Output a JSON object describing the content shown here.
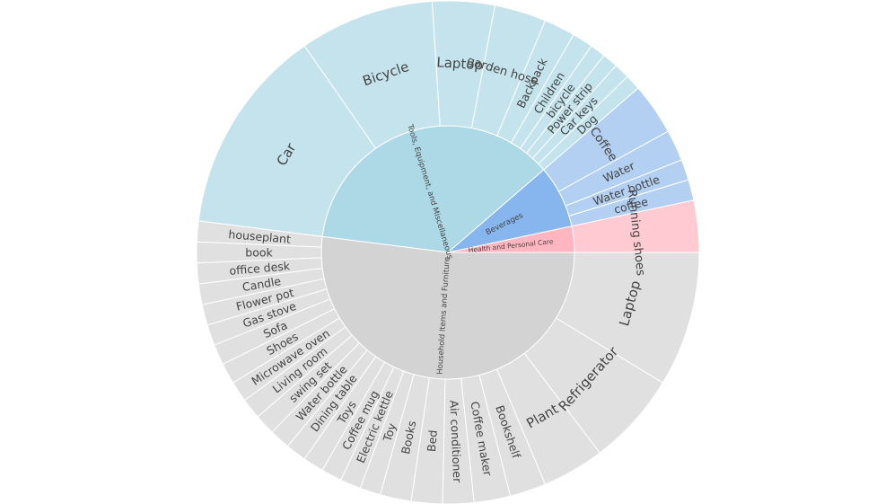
{
  "chart_data": {
    "type": "sunburst",
    "title": "",
    "colors": {
      "Household Items and Furniture": {
        "inner": "#d3d3d3",
        "outer": "#e0e0e0"
      },
      "Tools, Equipment, and Miscellaneous": {
        "inner": "#add8e6",
        "outer": "#c4e3ed"
      },
      "Beverages": {
        "inner": "#87b5ed",
        "outer": "#b3d0f3"
      },
      "Health and Personal Care": {
        "inner": "#ffb6c1",
        "outer": "#ffcad2"
      }
    },
    "categories": [
      {
        "name": "Health and Personal Care",
        "children": [
          {
            "name": "Running shoes",
            "value": 5
          }
        ]
      },
      {
        "name": "Beverages",
        "children": [
          {
            "name": "coffee",
            "value": 2
          },
          {
            "name": "Water bottle",
            "value": 2
          },
          {
            "name": "Water",
            "value": 3
          },
          {
            "name": "Coffee",
            "value": 5
          }
        ]
      },
      {
        "name": "Tools, Equipment, and Miscellaneous",
        "children": [
          {
            "name": "Dog",
            "value": 1.5
          },
          {
            "name": "Car keys",
            "value": 1.5
          },
          {
            "name": "Power strip",
            "value": 1.5
          },
          {
            "name": "bicycle",
            "value": 1.5
          },
          {
            "name": "Children",
            "value": 2
          },
          {
            "name": "Backpack",
            "value": 3
          },
          {
            "name": "garden hose",
            "value": 5
          },
          {
            "name": "Laptop",
            "value": 6
          },
          {
            "name": "Bicycle",
            "value": 13
          },
          {
            "name": "Car",
            "value": 20
          }
        ]
      },
      {
        "name": "Household Items and Furniture",
        "children": [
          {
            "name": "houseplant",
            "value": 2
          },
          {
            "name": "book",
            "value": 2
          },
          {
            "name": "office desk",
            "value": 2
          },
          {
            "name": "Candle",
            "value": 2
          },
          {
            "name": "Flower pot",
            "value": 2
          },
          {
            "name": "Gas stove",
            "value": 2
          },
          {
            "name": "Sofa",
            "value": 2
          },
          {
            "name": "Shoes",
            "value": 2
          },
          {
            "name": "Microwave oven",
            "value": 2
          },
          {
            "name": "Living room",
            "value": 2
          },
          {
            "name": "swing set",
            "value": 2
          },
          {
            "name": "Water bottle",
            "value": 2
          },
          {
            "name": "Dining table",
            "value": 2
          },
          {
            "name": "Toys",
            "value": 2
          },
          {
            "name": "Coffee mug",
            "value": 2
          },
          {
            "name": "Electric kettle",
            "value": 2
          },
          {
            "name": "Toy",
            "value": 2
          },
          {
            "name": "Books",
            "value": 3
          },
          {
            "name": "Bed",
            "value": 3
          },
          {
            "name": "Air conditioner",
            "value": 3
          },
          {
            "name": "Coffee maker",
            "value": 3.5
          },
          {
            "name": "Bookshelf",
            "value": 3.5
          },
          {
            "name": "Plant",
            "value": 6
          },
          {
            "name": "Refrigerator",
            "value": 9
          },
          {
            "name": "Laptop",
            "value": 13
          }
        ]
      }
    ]
  }
}
